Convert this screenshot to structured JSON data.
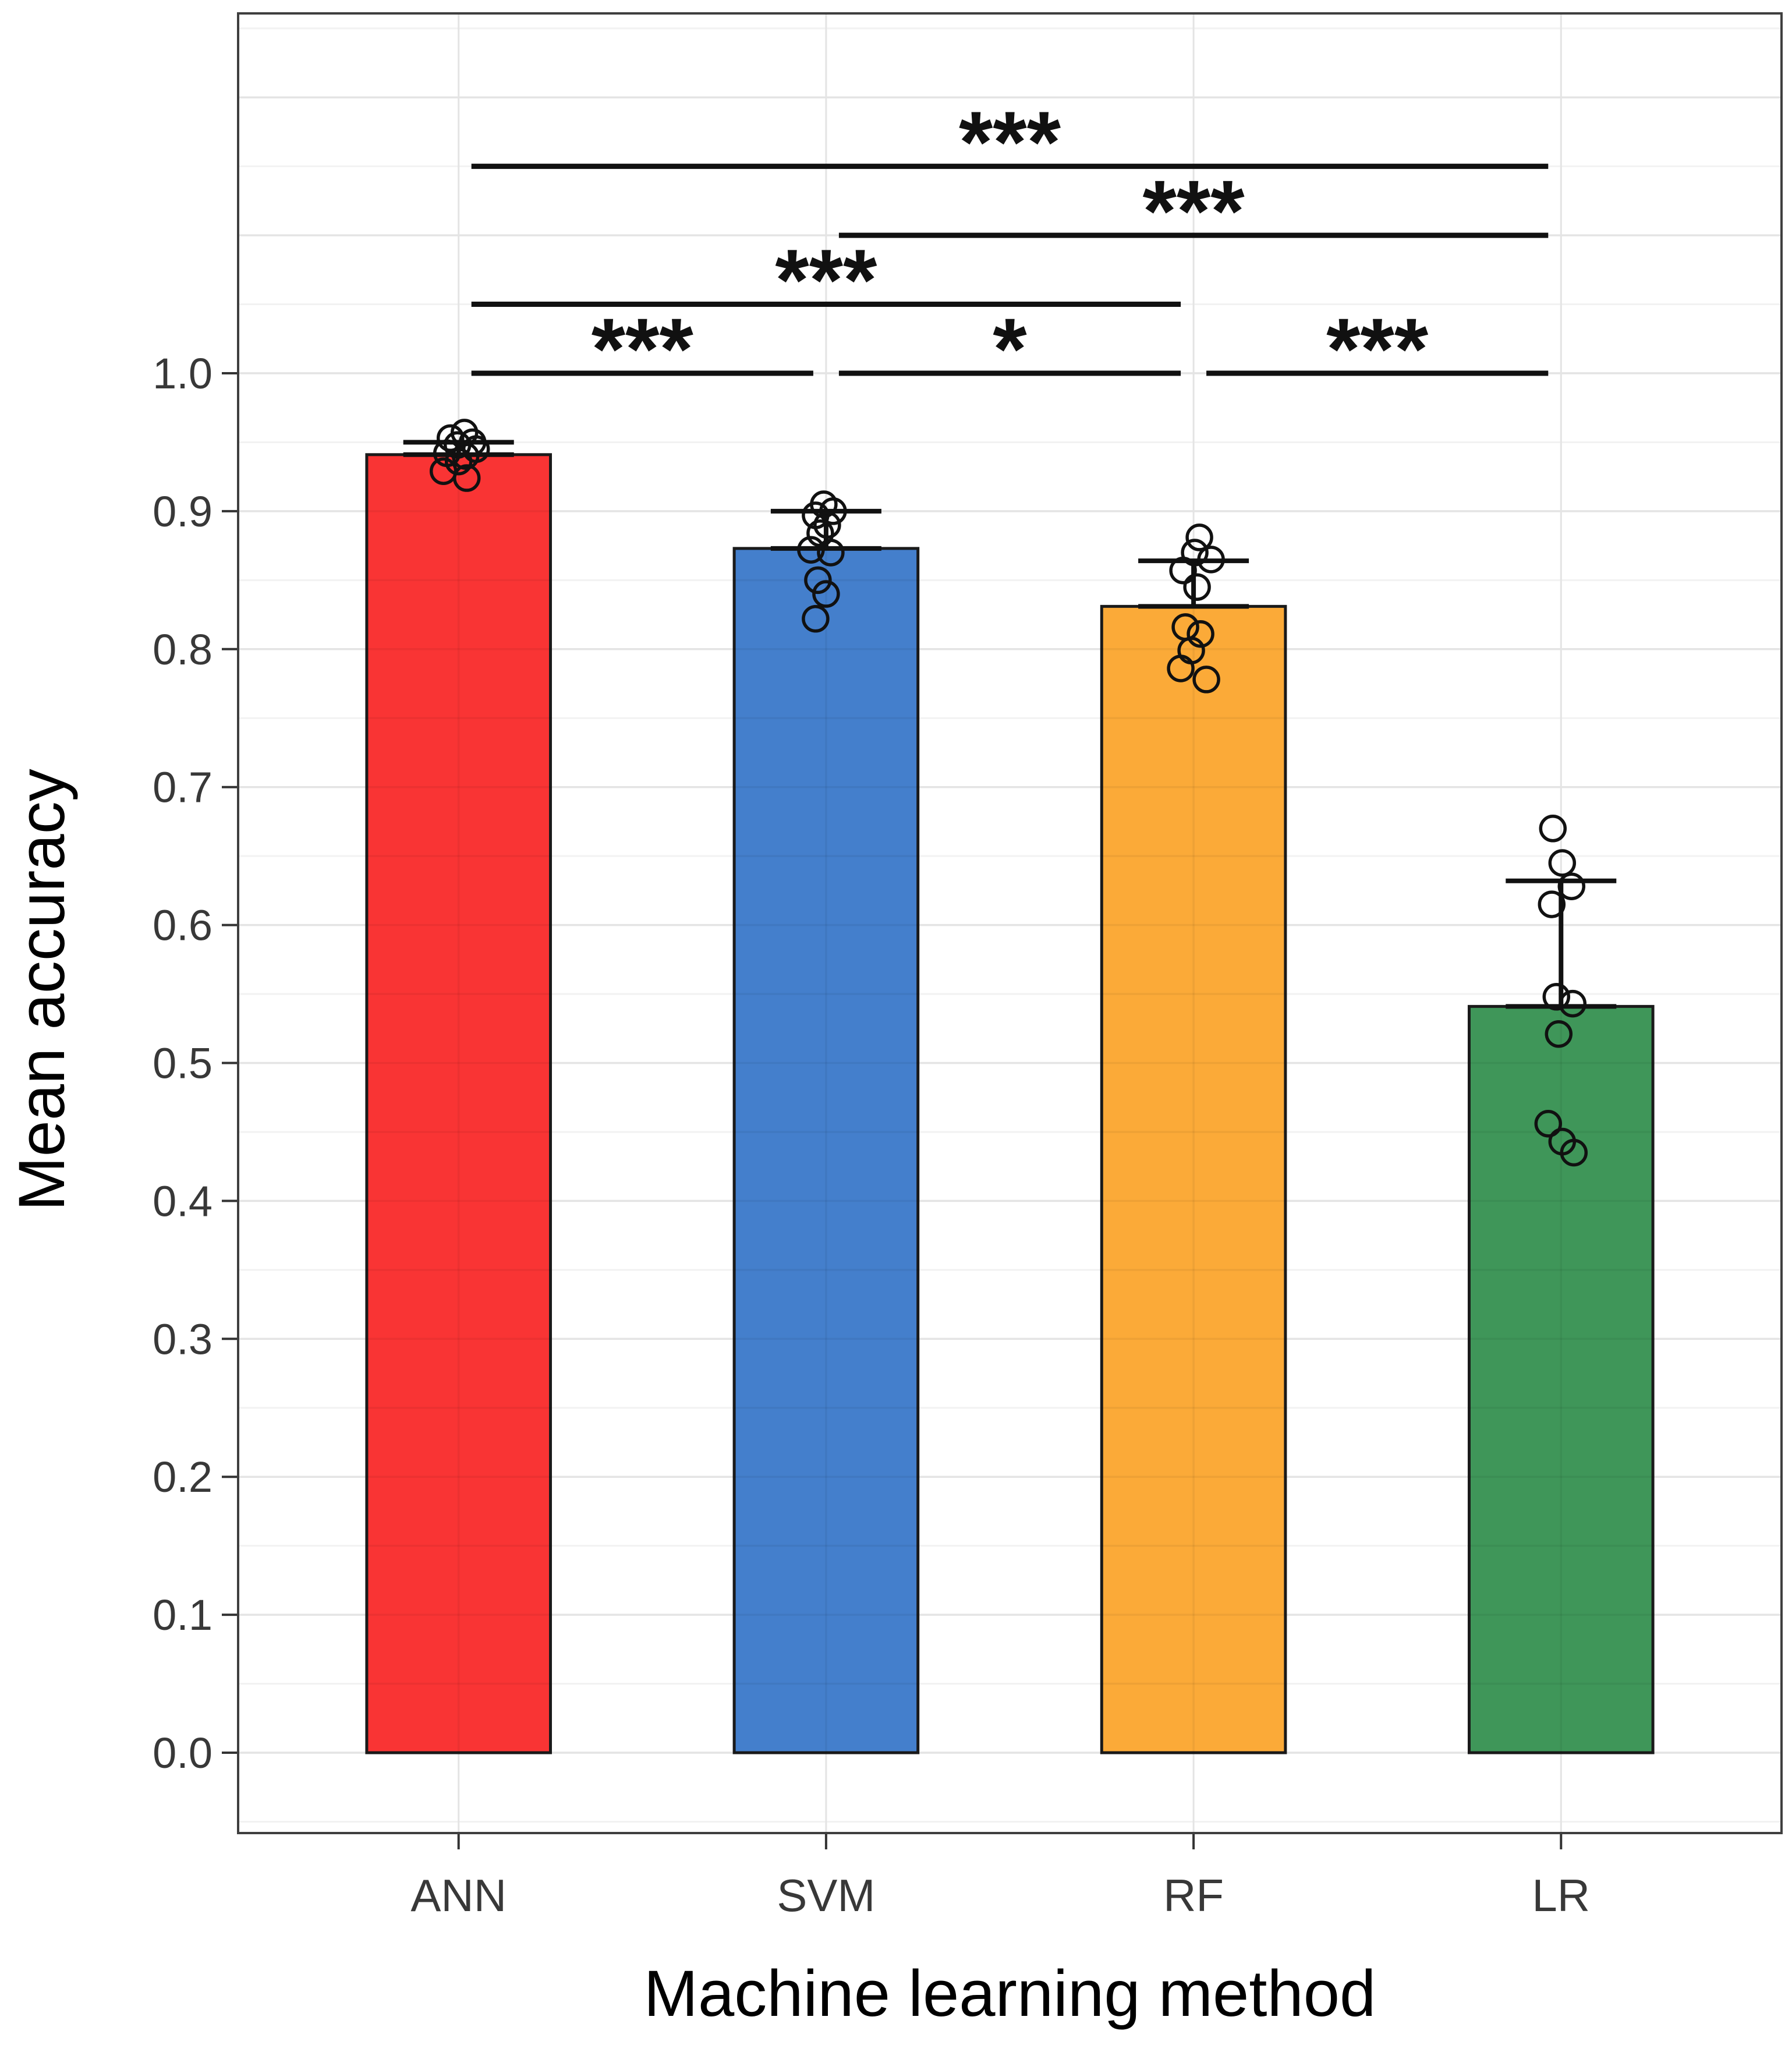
{
  "figure": {
    "background": "#ffffff",
    "panel_background": "#ffffff",
    "panel_border_color": "#3f3f3f",
    "grid_major_color": "#e4e4e4",
    "grid_minor_color": "#f2f2f2",
    "grid_overlay_color": "rgba(0,0,0,0.05)",
    "tick_color": "#333333",
    "axis_text_color": "#383838",
    "title_color": "#000000",
    "bar_edge_color": "#1a1a1a",
    "point_color": "#111111",
    "errorbar_color": "#111111",
    "bracket_color": "#111111"
  },
  "chart_data": {
    "type": "bar",
    "title": "",
    "xlabel": "Machine learning method",
    "ylabel": "Mean accuracy",
    "categories": [
      "ANN",
      "SVM",
      "RF",
      "LR"
    ],
    "series": [
      {
        "name": "Mean accuracy",
        "values": [
          0.941,
          0.873,
          0.831,
          0.541
        ]
      }
    ],
    "bar_colors": [
      "#F93434",
      "#447FCC",
      "#FBAA38",
      "#3F9659"
    ],
    "error_top": [
      0.95,
      0.9,
      0.864,
      0.632
    ],
    "points": [
      [
        [
          0.957,
          10
        ],
        [
          0.953,
          -14
        ],
        [
          0.95,
          24
        ],
        [
          0.948,
          -2
        ],
        [
          0.945,
          30
        ],
        [
          0.942,
          -20
        ],
        [
          0.94,
          12
        ],
        [
          0.936,
          0
        ],
        [
          0.929,
          -26
        ],
        [
          0.924,
          14
        ]
      ],
      [
        [
          0.905,
          -4
        ],
        [
          0.9,
          12
        ],
        [
          0.897,
          -18
        ],
        [
          0.89,
          2
        ],
        [
          0.884,
          -10
        ],
        [
          0.872,
          -26
        ],
        [
          0.87,
          8
        ],
        [
          0.85,
          -14
        ],
        [
          0.84,
          0
        ],
        [
          0.822,
          -18
        ]
      ],
      [
        [
          0.881,
          10
        ],
        [
          0.87,
          2
        ],
        [
          0.865,
          30
        ],
        [
          0.857,
          -18
        ],
        [
          0.845,
          6
        ],
        [
          0.816,
          -14
        ],
        [
          0.811,
          12
        ],
        [
          0.799,
          -4
        ],
        [
          0.786,
          -22
        ],
        [
          0.778,
          22
        ]
      ],
      [
        [
          0.67,
          -14
        ],
        [
          0.645,
          2
        ],
        [
          0.628,
          18
        ],
        [
          0.615,
          -16
        ],
        [
          0.548,
          -8
        ],
        [
          0.543,
          20
        ],
        [
          0.521,
          -4
        ],
        [
          0.456,
          -22
        ],
        [
          0.443,
          2
        ],
        [
          0.435,
          22
        ]
      ]
    ],
    "significance": [
      {
        "pair": [
          0,
          1
        ],
        "y": 1.0,
        "label": "***"
      },
      {
        "pair": [
          1,
          2
        ],
        "y": 1.0,
        "label": "*"
      },
      {
        "pair": [
          2,
          3
        ],
        "y": 1.0,
        "label": "***"
      },
      {
        "pair": [
          0,
          2
        ],
        "y": 1.05,
        "label": "***"
      },
      {
        "pair": [
          1,
          3
        ],
        "y": 1.1,
        "label": "***"
      },
      {
        "pair": [
          0,
          3
        ],
        "y": 1.15,
        "label": "***"
      }
    ],
    "yticks": [
      {
        "v": 0.0,
        "label": "0.0"
      },
      {
        "v": 0.1,
        "label": "0.1"
      },
      {
        "v": 0.2,
        "label": "0.2"
      },
      {
        "v": 0.3,
        "label": "0.3"
      },
      {
        "v": 0.4,
        "label": "0.4"
      },
      {
        "v": 0.5,
        "label": "0.5"
      },
      {
        "v": 0.6,
        "label": "0.6"
      },
      {
        "v": 0.7,
        "label": "0.7"
      },
      {
        "v": 0.8,
        "label": "0.8"
      },
      {
        "v": 0.9,
        "label": "0.9"
      },
      {
        "v": 1.0,
        "label": "1.0"
      }
    ],
    "ylim": [
      -0.058,
      1.261
    ],
    "grid": "major+minor",
    "legend": "none"
  }
}
